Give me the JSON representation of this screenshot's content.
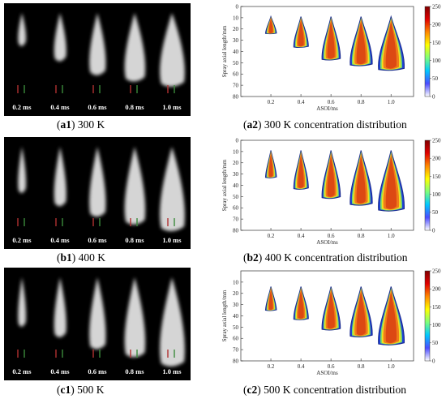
{
  "rows": [
    {
      "photo_caption": {
        "id": "a1",
        "text": " 300 K"
      },
      "plot_caption": {
        "id": "a2",
        "text": " 300 K concentration distribution"
      },
      "time_labels": [
        "0.2 ms",
        "0.4 ms",
        "0.6 ms",
        "0.8 ms",
        "1.0 ms"
      ]
    },
    {
      "photo_caption": {
        "id": "b1",
        "text": " 400 K"
      },
      "plot_caption": {
        "id": "b2",
        "text": " 400 K concentration distribution"
      },
      "time_labels": [
        "0.2 ms",
        "0.4 ms",
        "0.6 ms",
        "0.8 ms",
        "1.0 ms"
      ]
    },
    {
      "photo_caption": {
        "id": "c1",
        "text": " 500 K"
      },
      "plot_caption": {
        "id": "c2",
        "text": " 500 K concentration distribution"
      },
      "time_labels": [
        "0.2 ms",
        "0.4 ms",
        "0.6 ms",
        "0.8 ms",
        "1.0 ms"
      ]
    }
  ],
  "chart_data": [
    {
      "type": "heatmap",
      "xlabel": "ASOI/ms",
      "ylabel": "Spray axial length/mm",
      "x": [
        0.2,
        0.4,
        0.6,
        0.8,
        1.0
      ],
      "y_ticks": [
        0,
        10,
        20,
        30,
        40,
        50,
        60,
        70,
        80
      ],
      "ylim": [
        0,
        80
      ],
      "colorbar_ticks": [
        0,
        50,
        100,
        150,
        200,
        250
      ],
      "spray_tip_mm": [
        24,
        36,
        47,
        52,
        56
      ]
    },
    {
      "type": "heatmap",
      "xlabel": "ASOI/ms",
      "ylabel": "Spray axial length/mm",
      "x": [
        0.2,
        0.4,
        0.6,
        0.8,
        1.0
      ],
      "y_ticks": [
        0,
        10,
        20,
        30,
        40,
        50,
        60,
        70,
        80
      ],
      "ylim": [
        0,
        80
      ],
      "colorbar_ticks": [
        0,
        50,
        100,
        150,
        200,
        250
      ],
      "spray_tip_mm": [
        33,
        43,
        51,
        57,
        62
      ]
    },
    {
      "type": "heatmap",
      "xlabel": "ASOI/ms",
      "ylabel": "Spray axial length/mm",
      "x": [
        0.2,
        0.4,
        0.6,
        0.8,
        1.0
      ],
      "y_ticks": [
        10,
        20,
        30,
        40,
        50,
        60,
        70,
        80
      ],
      "ylim": [
        0,
        80
      ],
      "colorbar_ticks": [
        0,
        50,
        100,
        150,
        200,
        250
      ],
      "spray_tip_mm": [
        35,
        43,
        52,
        58,
        65
      ]
    }
  ]
}
